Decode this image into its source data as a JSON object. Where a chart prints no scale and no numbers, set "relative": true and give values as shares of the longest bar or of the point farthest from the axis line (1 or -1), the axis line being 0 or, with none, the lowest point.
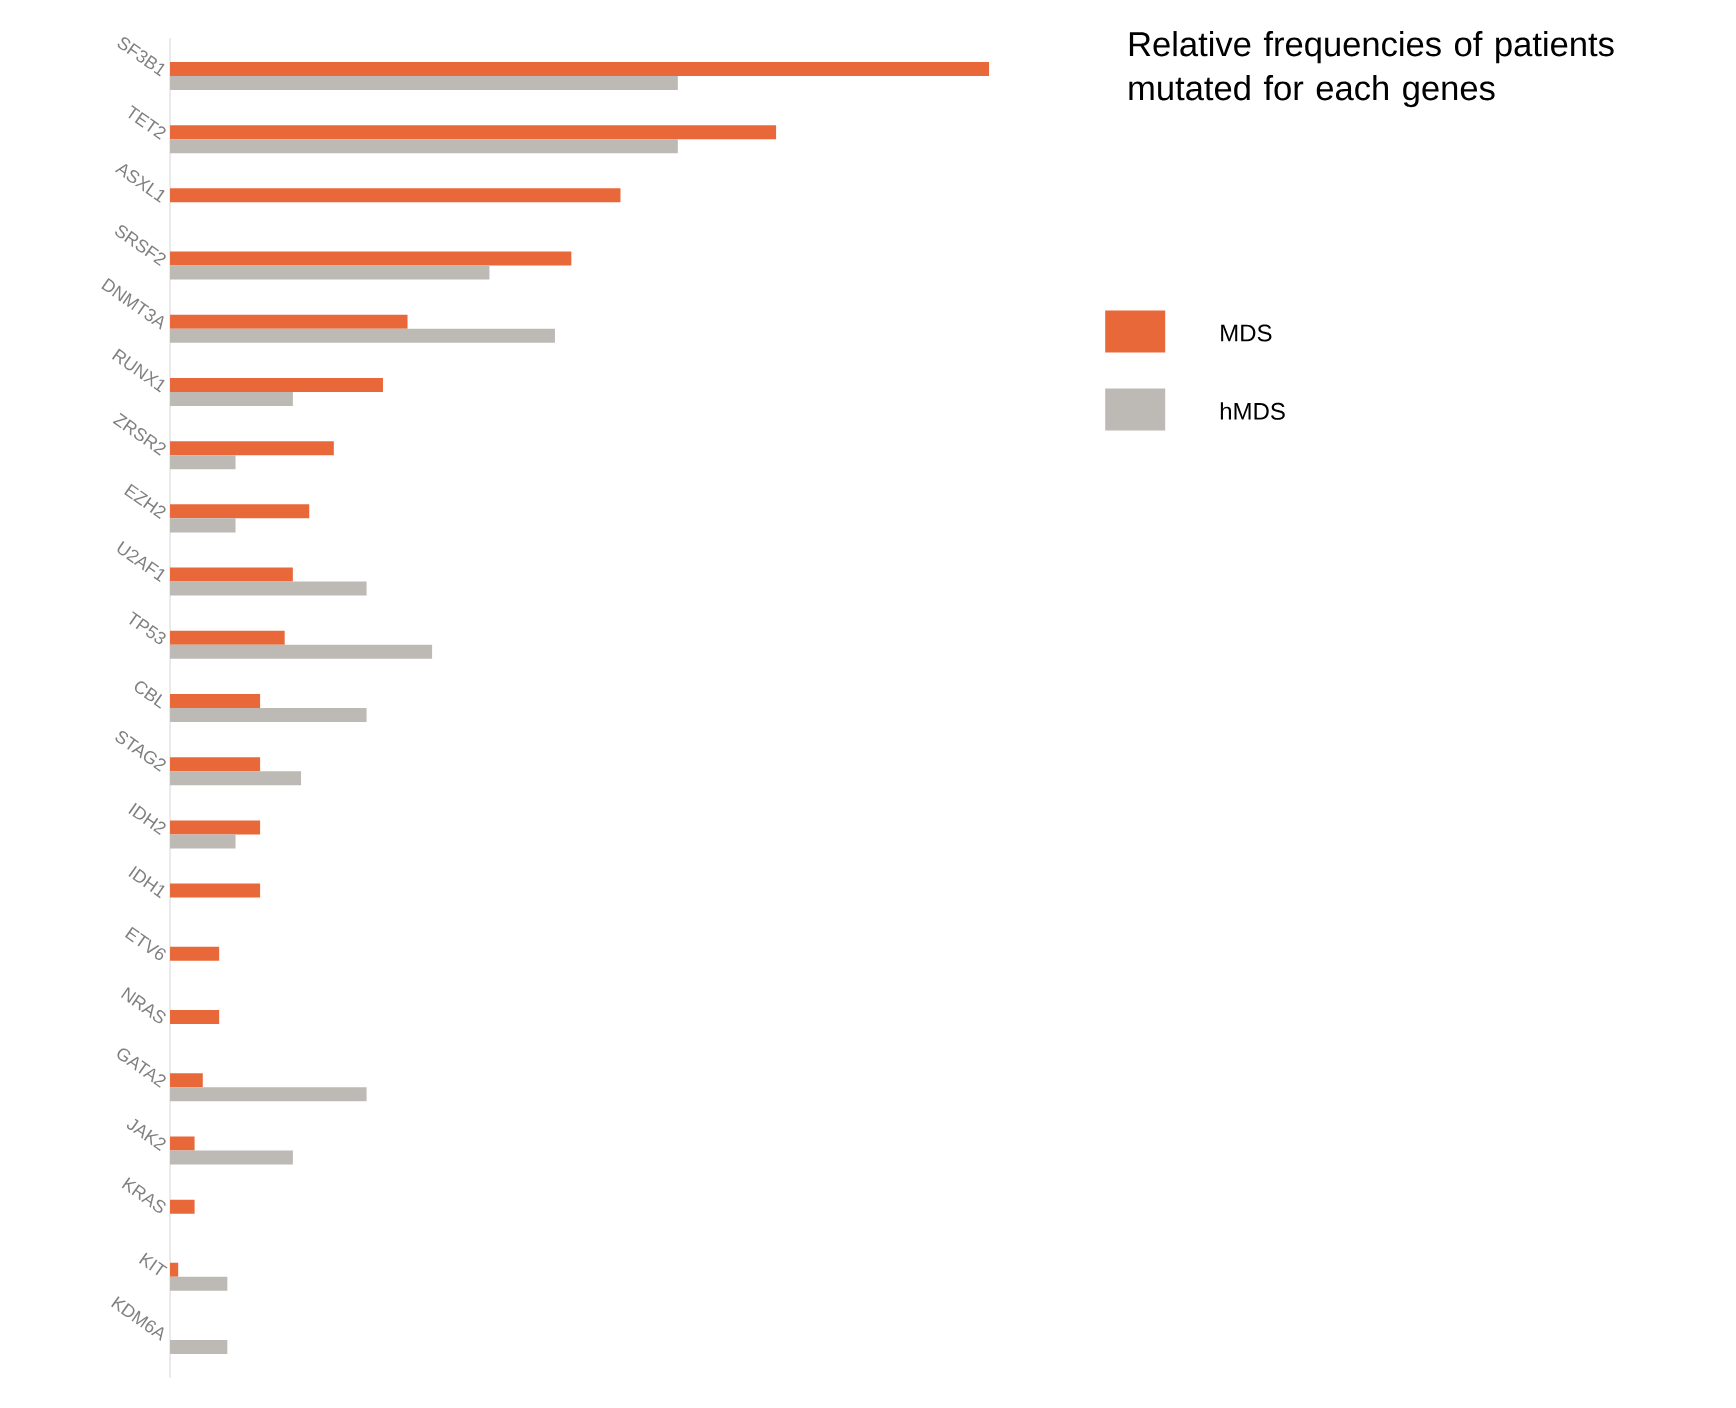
{
  "chart_data": {
    "type": "bar",
    "orientation": "horizontal",
    "relative": true,
    "title": "Relative frequencies of patients mutated for each genes",
    "categories": [
      "SF3B1",
      "TET2",
      "ASXL1",
      "SRSF2",
      "DNMT3A",
      "RUNX1",
      "ZRSR2",
      "EZH2",
      "U2AF1",
      "TP53",
      "CBL",
      "STAG2",
      "IDH2",
      "IDH1",
      "ETV6",
      "NRAS",
      "GATA2",
      "JAK2",
      "KRAS",
      "KIT",
      "KDM6A"
    ],
    "series": [
      {
        "name": "MDS",
        "color": "#e8683a",
        "values": [
          1,
          0.74,
          0.55,
          0.49,
          0.29,
          0.26,
          0.2,
          0.17,
          0.15,
          0.14,
          0.11,
          0.11,
          0.11,
          0.11,
          0.06,
          0.06,
          0.04,
          0.03,
          0.03,
          0.01,
          0
        ]
      },
      {
        "name": "hMDS",
        "color": "#bdbab5",
        "values": [
          0.62,
          0.62,
          0,
          0.39,
          0.47,
          0.15,
          0.08,
          0.08,
          0.24,
          0.32,
          0.24,
          0.16,
          0.08,
          0,
          0,
          0,
          0.24,
          0.15,
          0,
          0.07,
          0.07
        ]
      }
    ],
    "legend": "right"
  }
}
